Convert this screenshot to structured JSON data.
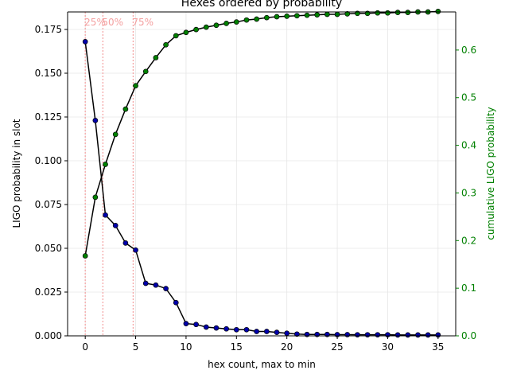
{
  "chart_data": {
    "type": "line",
    "title": "Hexes ordered by probability",
    "xlabel": "hex count,  max to min",
    "ylabel": "LIGO probability in slot",
    "y2label": "cumulative LIGO probability",
    "xlim": [
      -1.75,
      36.75
    ],
    "ylim": [
      0,
      0.185
    ],
    "y2lim": [
      0,
      0.68
    ],
    "x_ticks": [
      0,
      5,
      10,
      15,
      20,
      25,
      30,
      35
    ],
    "y_ticks": [
      0.0,
      0.025,
      0.05,
      0.075,
      0.1,
      0.125,
      0.15,
      0.175
    ],
    "y_tick_labels": [
      "0.000",
      "0.025",
      "0.050",
      "0.075",
      "0.100",
      "0.125",
      "0.150",
      "0.175"
    ],
    "y2_ticks": [
      0.0,
      0.1,
      0.2,
      0.3,
      0.4,
      0.5,
      0.6
    ],
    "y2_tick_labels": [
      "0.0",
      "0.1",
      "0.2",
      "0.3",
      "0.4",
      "0.5",
      "0.6"
    ],
    "grid": true,
    "x": [
      0,
      1,
      2,
      3,
      4,
      5,
      6,
      7,
      8,
      9,
      10,
      11,
      12,
      13,
      14,
      15,
      16,
      17,
      18,
      19,
      20,
      21,
      22,
      23,
      24,
      25,
      26,
      27,
      28,
      29,
      30,
      31,
      32,
      33,
      34,
      35
    ],
    "series": [
      {
        "axis": "left",
        "marker_color": "#0000aa",
        "line_color": "#000000",
        "values": [
          0.168,
          0.123,
          0.069,
          0.063,
          0.053,
          0.049,
          0.03,
          0.029,
          0.027,
          0.019,
          0.007,
          0.0065,
          0.005,
          0.0045,
          0.004,
          0.0035,
          0.0035,
          0.0025,
          0.0025,
          0.002,
          0.0015,
          0.001,
          0.0008,
          0.0008,
          0.0008,
          0.0007,
          0.0007,
          0.0006,
          0.0006,
          0.0006,
          0.0006,
          0.0005,
          0.0005,
          0.0005,
          0.0005,
          0.0005
        ]
      },
      {
        "axis": "right",
        "marker_color": "#008000",
        "line_color": "#000000",
        "values": [
          0.168,
          0.291,
          0.36,
          0.423,
          0.476,
          0.525,
          0.555,
          0.584,
          0.611,
          0.63,
          0.637,
          0.643,
          0.648,
          0.652,
          0.656,
          0.659,
          0.663,
          0.665,
          0.668,
          0.67,
          0.671,
          0.672,
          0.673,
          0.674,
          0.675,
          0.675,
          0.676,
          0.677,
          0.677,
          0.678,
          0.678,
          0.679,
          0.679,
          0.68,
          0.68,
          0.681
        ]
      }
    ],
    "percentile_lines": [
      {
        "x": 0.0,
        "label": "25%"
      },
      {
        "x": 1.75,
        "label": "50%"
      },
      {
        "x": 4.75,
        "label": "75%"
      }
    ],
    "percentile_color": "#f4a0a0",
    "left_color": "#000000",
    "right_color": "#008000"
  }
}
